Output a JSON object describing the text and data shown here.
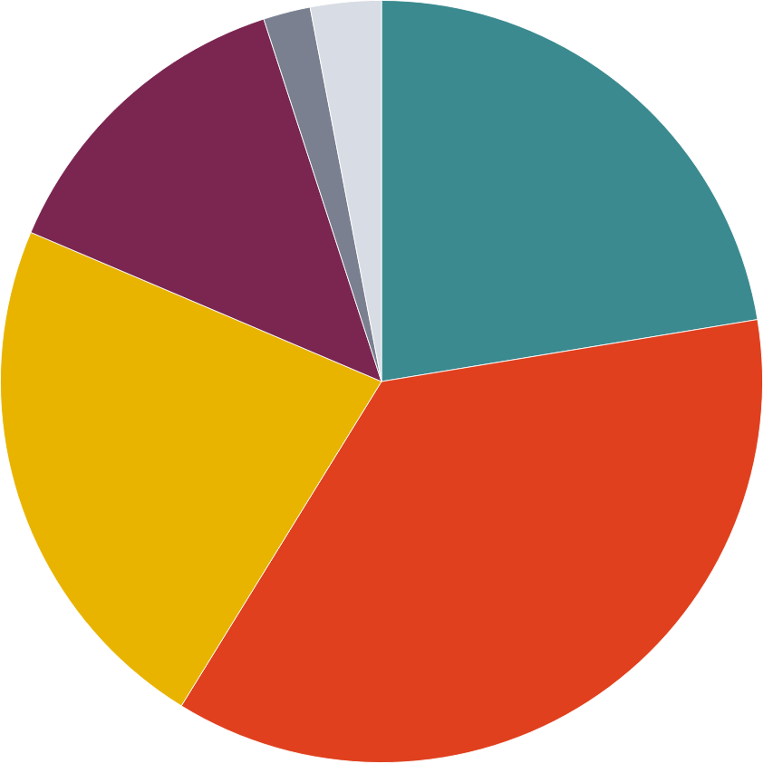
{
  "chart_data": {
    "type": "pie",
    "categories": [
      null,
      null,
      null,
      null,
      null,
      null
    ],
    "values": [
      22.4,
      36.4,
      22.6,
      13.6,
      2,
      3
    ],
    "colors": [
      "#3a8a8f",
      "#e0401e",
      "#e8b400",
      "#7a2650",
      "#7a8090",
      "#d8dce4"
    ]
  }
}
